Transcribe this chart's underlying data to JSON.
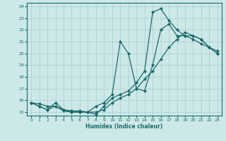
{
  "xlabel": "Humidex (Indice chaleur)",
  "xlim": [
    -0.5,
    23.5
  ],
  "ylim": [
    14.7,
    24.3
  ],
  "xticks": [
    0,
    1,
    2,
    3,
    4,
    5,
    6,
    7,
    8,
    9,
    10,
    11,
    12,
    13,
    14,
    15,
    16,
    17,
    18,
    19,
    20,
    21,
    22,
    23
  ],
  "yticks": [
    15,
    16,
    17,
    18,
    19,
    20,
    21,
    22,
    23,
    24
  ],
  "bg_color": "#cce8e8",
  "grid_color": "#aacccc",
  "line_color": "#1a6b6b",
  "lines": [
    {
      "x": [
        0,
        1,
        2,
        3,
        4,
        5,
        6,
        7,
        8,
        9,
        10,
        11,
        12,
        13,
        14,
        15,
        16,
        17,
        18,
        19,
        20,
        21,
        22,
        23
      ],
      "y": [
        15.8,
        15.7,
        15.5,
        15.5,
        15.2,
        15.1,
        15.1,
        15.0,
        15.0,
        15.2,
        15.8,
        16.2,
        16.5,
        17.0,
        17.8,
        18.5,
        19.5,
        20.5,
        21.2,
        21.8,
        21.5,
        21.2,
        20.5,
        20.2
      ],
      "marker": "D",
      "markersize": 2.0,
      "lw": 0.9
    },
    {
      "x": [
        0,
        1,
        2,
        3,
        4,
        5,
        6,
        7,
        8,
        9,
        10,
        11,
        12,
        13,
        14,
        15,
        16,
        17,
        18,
        19,
        20,
        21,
        22,
        23
      ],
      "y": [
        15.8,
        15.5,
        15.2,
        15.8,
        15.2,
        15.0,
        15.0,
        15.0,
        15.5,
        15.8,
        16.5,
        21.0,
        20.0,
        17.0,
        16.8,
        19.0,
        22.0,
        22.5,
        21.5,
        21.5,
        21.2,
        20.8,
        20.5,
        20.0
      ],
      "marker": "D",
      "markersize": 2.0,
      "lw": 0.9
    },
    {
      "x": [
        0,
        1,
        2,
        3,
        4,
        5,
        6,
        7,
        8,
        9,
        10,
        11,
        12,
        13,
        14,
        15,
        16,
        17,
        18,
        19,
        20,
        21,
        22,
        23
      ],
      "y": [
        15.8,
        15.5,
        15.2,
        15.5,
        15.1,
        15.0,
        15.0,
        15.0,
        14.8,
        15.5,
        16.2,
        16.5,
        16.8,
        17.5,
        18.5,
        23.5,
        23.8,
        22.8,
        22.0,
        21.5,
        21.5,
        21.2,
        20.5,
        20.0
      ],
      "marker": "D",
      "markersize": 2.0,
      "lw": 0.9
    }
  ]
}
